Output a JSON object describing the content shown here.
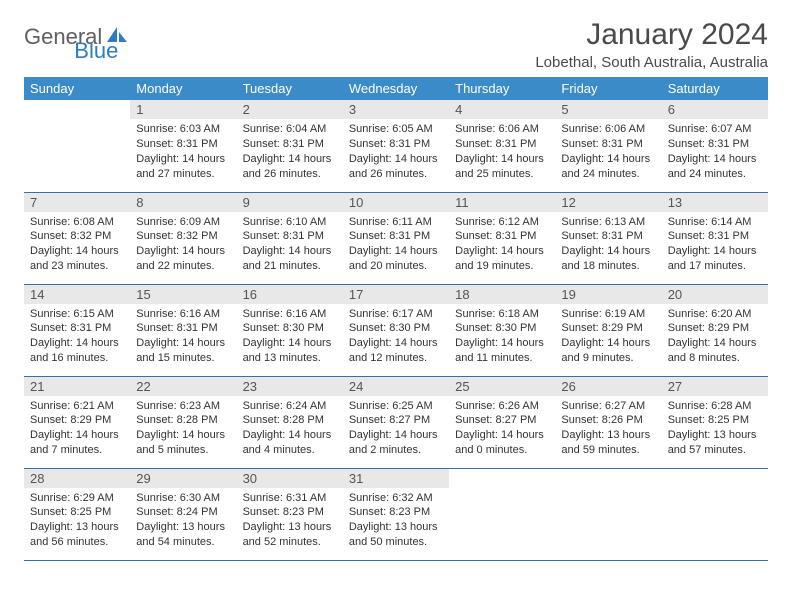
{
  "brand": {
    "part1": "General",
    "part2": "Blue"
  },
  "title": "January 2024",
  "location": "Lobethal, South Australia, Australia",
  "colors": {
    "header_bg": "#3b8bc9",
    "header_text": "#ffffff",
    "daynum_bg": "#e8e8e8",
    "rule": "#3b6fa0",
    "logo_gray": "#606060",
    "logo_blue": "#2e7cc0"
  },
  "weekdays": [
    "Sunday",
    "Monday",
    "Tuesday",
    "Wednesday",
    "Thursday",
    "Friday",
    "Saturday"
  ],
  "weeks": [
    [
      {
        "empty": true
      },
      {
        "n": "1",
        "sr": "6:03 AM",
        "ss": "8:31 PM",
        "dl": "14 hours and 27 minutes."
      },
      {
        "n": "2",
        "sr": "6:04 AM",
        "ss": "8:31 PM",
        "dl": "14 hours and 26 minutes."
      },
      {
        "n": "3",
        "sr": "6:05 AM",
        "ss": "8:31 PM",
        "dl": "14 hours and 26 minutes."
      },
      {
        "n": "4",
        "sr": "6:06 AM",
        "ss": "8:31 PM",
        "dl": "14 hours and 25 minutes."
      },
      {
        "n": "5",
        "sr": "6:06 AM",
        "ss": "8:31 PM",
        "dl": "14 hours and 24 minutes."
      },
      {
        "n": "6",
        "sr": "6:07 AM",
        "ss": "8:31 PM",
        "dl": "14 hours and 24 minutes."
      }
    ],
    [
      {
        "n": "7",
        "sr": "6:08 AM",
        "ss": "8:32 PM",
        "dl": "14 hours and 23 minutes."
      },
      {
        "n": "8",
        "sr": "6:09 AM",
        "ss": "8:32 PM",
        "dl": "14 hours and 22 minutes."
      },
      {
        "n": "9",
        "sr": "6:10 AM",
        "ss": "8:31 PM",
        "dl": "14 hours and 21 minutes."
      },
      {
        "n": "10",
        "sr": "6:11 AM",
        "ss": "8:31 PM",
        "dl": "14 hours and 20 minutes."
      },
      {
        "n": "11",
        "sr": "6:12 AM",
        "ss": "8:31 PM",
        "dl": "14 hours and 19 minutes."
      },
      {
        "n": "12",
        "sr": "6:13 AM",
        "ss": "8:31 PM",
        "dl": "14 hours and 18 minutes."
      },
      {
        "n": "13",
        "sr": "6:14 AM",
        "ss": "8:31 PM",
        "dl": "14 hours and 17 minutes."
      }
    ],
    [
      {
        "n": "14",
        "sr": "6:15 AM",
        "ss": "8:31 PM",
        "dl": "14 hours and 16 minutes."
      },
      {
        "n": "15",
        "sr": "6:16 AM",
        "ss": "8:31 PM",
        "dl": "14 hours and 15 minutes."
      },
      {
        "n": "16",
        "sr": "6:16 AM",
        "ss": "8:30 PM",
        "dl": "14 hours and 13 minutes."
      },
      {
        "n": "17",
        "sr": "6:17 AM",
        "ss": "8:30 PM",
        "dl": "14 hours and 12 minutes."
      },
      {
        "n": "18",
        "sr": "6:18 AM",
        "ss": "8:30 PM",
        "dl": "14 hours and 11 minutes."
      },
      {
        "n": "19",
        "sr": "6:19 AM",
        "ss": "8:29 PM",
        "dl": "14 hours and 9 minutes."
      },
      {
        "n": "20",
        "sr": "6:20 AM",
        "ss": "8:29 PM",
        "dl": "14 hours and 8 minutes."
      }
    ],
    [
      {
        "n": "21",
        "sr": "6:21 AM",
        "ss": "8:29 PM",
        "dl": "14 hours and 7 minutes."
      },
      {
        "n": "22",
        "sr": "6:23 AM",
        "ss": "8:28 PM",
        "dl": "14 hours and 5 minutes."
      },
      {
        "n": "23",
        "sr": "6:24 AM",
        "ss": "8:28 PM",
        "dl": "14 hours and 4 minutes."
      },
      {
        "n": "24",
        "sr": "6:25 AM",
        "ss": "8:27 PM",
        "dl": "14 hours and 2 minutes."
      },
      {
        "n": "25",
        "sr": "6:26 AM",
        "ss": "8:27 PM",
        "dl": "14 hours and 0 minutes."
      },
      {
        "n": "26",
        "sr": "6:27 AM",
        "ss": "8:26 PM",
        "dl": "13 hours and 59 minutes."
      },
      {
        "n": "27",
        "sr": "6:28 AM",
        "ss": "8:25 PM",
        "dl": "13 hours and 57 minutes."
      }
    ],
    [
      {
        "n": "28",
        "sr": "6:29 AM",
        "ss": "8:25 PM",
        "dl": "13 hours and 56 minutes."
      },
      {
        "n": "29",
        "sr": "6:30 AM",
        "ss": "8:24 PM",
        "dl": "13 hours and 54 minutes."
      },
      {
        "n": "30",
        "sr": "6:31 AM",
        "ss": "8:23 PM",
        "dl": "13 hours and 52 minutes."
      },
      {
        "n": "31",
        "sr": "6:32 AM",
        "ss": "8:23 PM",
        "dl": "13 hours and 50 minutes."
      },
      {
        "empty": true
      },
      {
        "empty": true
      },
      {
        "empty": true
      }
    ]
  ],
  "labels": {
    "sunrise": "Sunrise: ",
    "sunset": "Sunset: ",
    "daylight": "Daylight: "
  }
}
